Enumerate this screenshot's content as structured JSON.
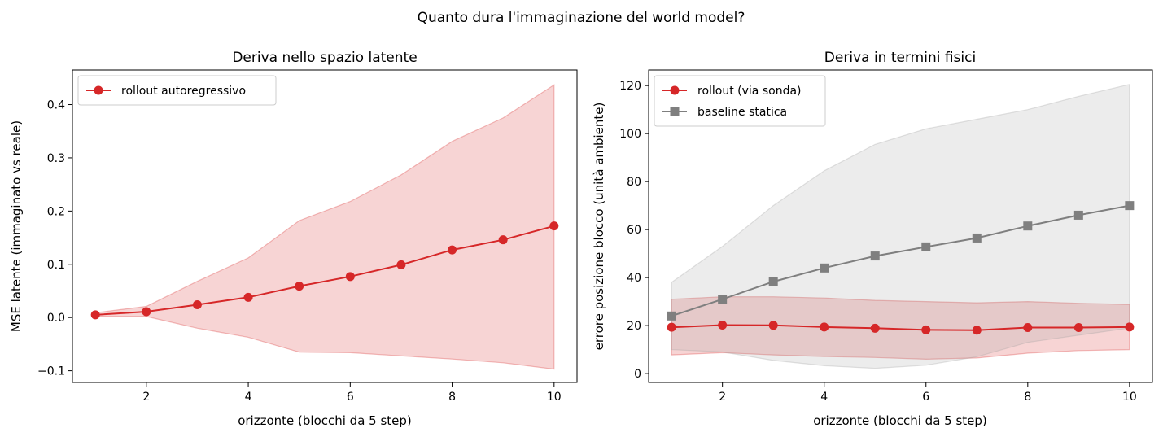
{
  "suptitle": "Quanto dura l'immaginazione del world model?",
  "chart_data": [
    {
      "type": "line",
      "title": "Deriva nello spazio latente",
      "xlabel": "orizzonte (blocchi da 5 step)",
      "ylabel": "MSE latente (immaginato vs reale)",
      "xlim": [
        0.55,
        10.45
      ],
      "ylim": [
        -0.122,
        0.465
      ],
      "xticks": [
        2,
        4,
        6,
        8,
        10
      ],
      "yticks": [
        -0.1,
        0.0,
        0.1,
        0.2,
        0.3,
        0.4
      ],
      "ytick_labels": [
        "−0.1",
        "0.0",
        "0.1",
        "0.2",
        "0.3",
        "0.4"
      ],
      "grid": false,
      "legend_position": "upper-left",
      "x": [
        1,
        2,
        3,
        4,
        5,
        6,
        7,
        8,
        9,
        10
      ],
      "series": [
        {
          "name": "rollout autoregressivo",
          "color": "#d62728",
          "marker": "circle",
          "values": [
            0.005,
            0.011,
            0.024,
            0.038,
            0.059,
            0.077,
            0.099,
            0.127,
            0.146,
            0.172
          ],
          "band_lower": [
            0.002,
            0.002,
            -0.02,
            -0.037,
            -0.065,
            -0.066,
            -0.072,
            -0.078,
            -0.085,
            -0.097
          ],
          "band_upper": [
            0.009,
            0.021,
            0.068,
            0.112,
            0.182,
            0.218,
            0.268,
            0.331,
            0.375,
            0.437
          ],
          "band_color": "#d62728"
        }
      ]
    },
    {
      "type": "line",
      "title": "Deriva in termini fisici",
      "xlabel": "orizzonte (blocchi da 5 step)",
      "ylabel": "errore posizione blocco (unità ambiente)",
      "xlim": [
        0.55,
        10.45
      ],
      "ylim": [
        -3.7,
        126.5
      ],
      "xticks": [
        2,
        4,
        6,
        8,
        10
      ],
      "yticks": [
        0,
        20,
        40,
        60,
        80,
        100,
        120
      ],
      "ytick_labels": [
        "0",
        "20",
        "40",
        "60",
        "80",
        "100",
        "120"
      ],
      "grid": false,
      "legend_position": "upper-left",
      "x": [
        1,
        2,
        3,
        4,
        5,
        6,
        7,
        8,
        9,
        10
      ],
      "series": [
        {
          "name": "rollout (via sonda)",
          "color": "#d62728",
          "marker": "circle",
          "values": [
            19.3,
            20.2,
            20.1,
            19.4,
            18.9,
            18.2,
            18.1,
            19.2,
            19.2,
            19.4
          ],
          "band_lower": [
            7.8,
            8.7,
            7.8,
            7.1,
            6.7,
            6.0,
            6.5,
            8.5,
            9.6,
            10.0
          ],
          "band_upper": [
            31.0,
            32.0,
            32.0,
            31.5,
            30.5,
            30.0,
            29.5,
            30.0,
            29.3,
            28.8
          ],
          "band_color": "#d62728"
        },
        {
          "name": "baseline statica",
          "color": "#7f7f7f",
          "marker": "square",
          "values": [
            24.0,
            31.0,
            38.3,
            44.0,
            49.0,
            52.8,
            56.5,
            61.5,
            66.0,
            70.0
          ],
          "band_lower": [
            10.0,
            9.0,
            5.5,
            3.3,
            2.2,
            3.5,
            7.0,
            13.0,
            16.0,
            19.0
          ],
          "band_upper": [
            38.0,
            53.0,
            70.0,
            84.5,
            95.5,
            102.0,
            106.0,
            110.0,
            115.5,
            120.5
          ],
          "band_color": "#9e9e9e"
        }
      ]
    }
  ]
}
